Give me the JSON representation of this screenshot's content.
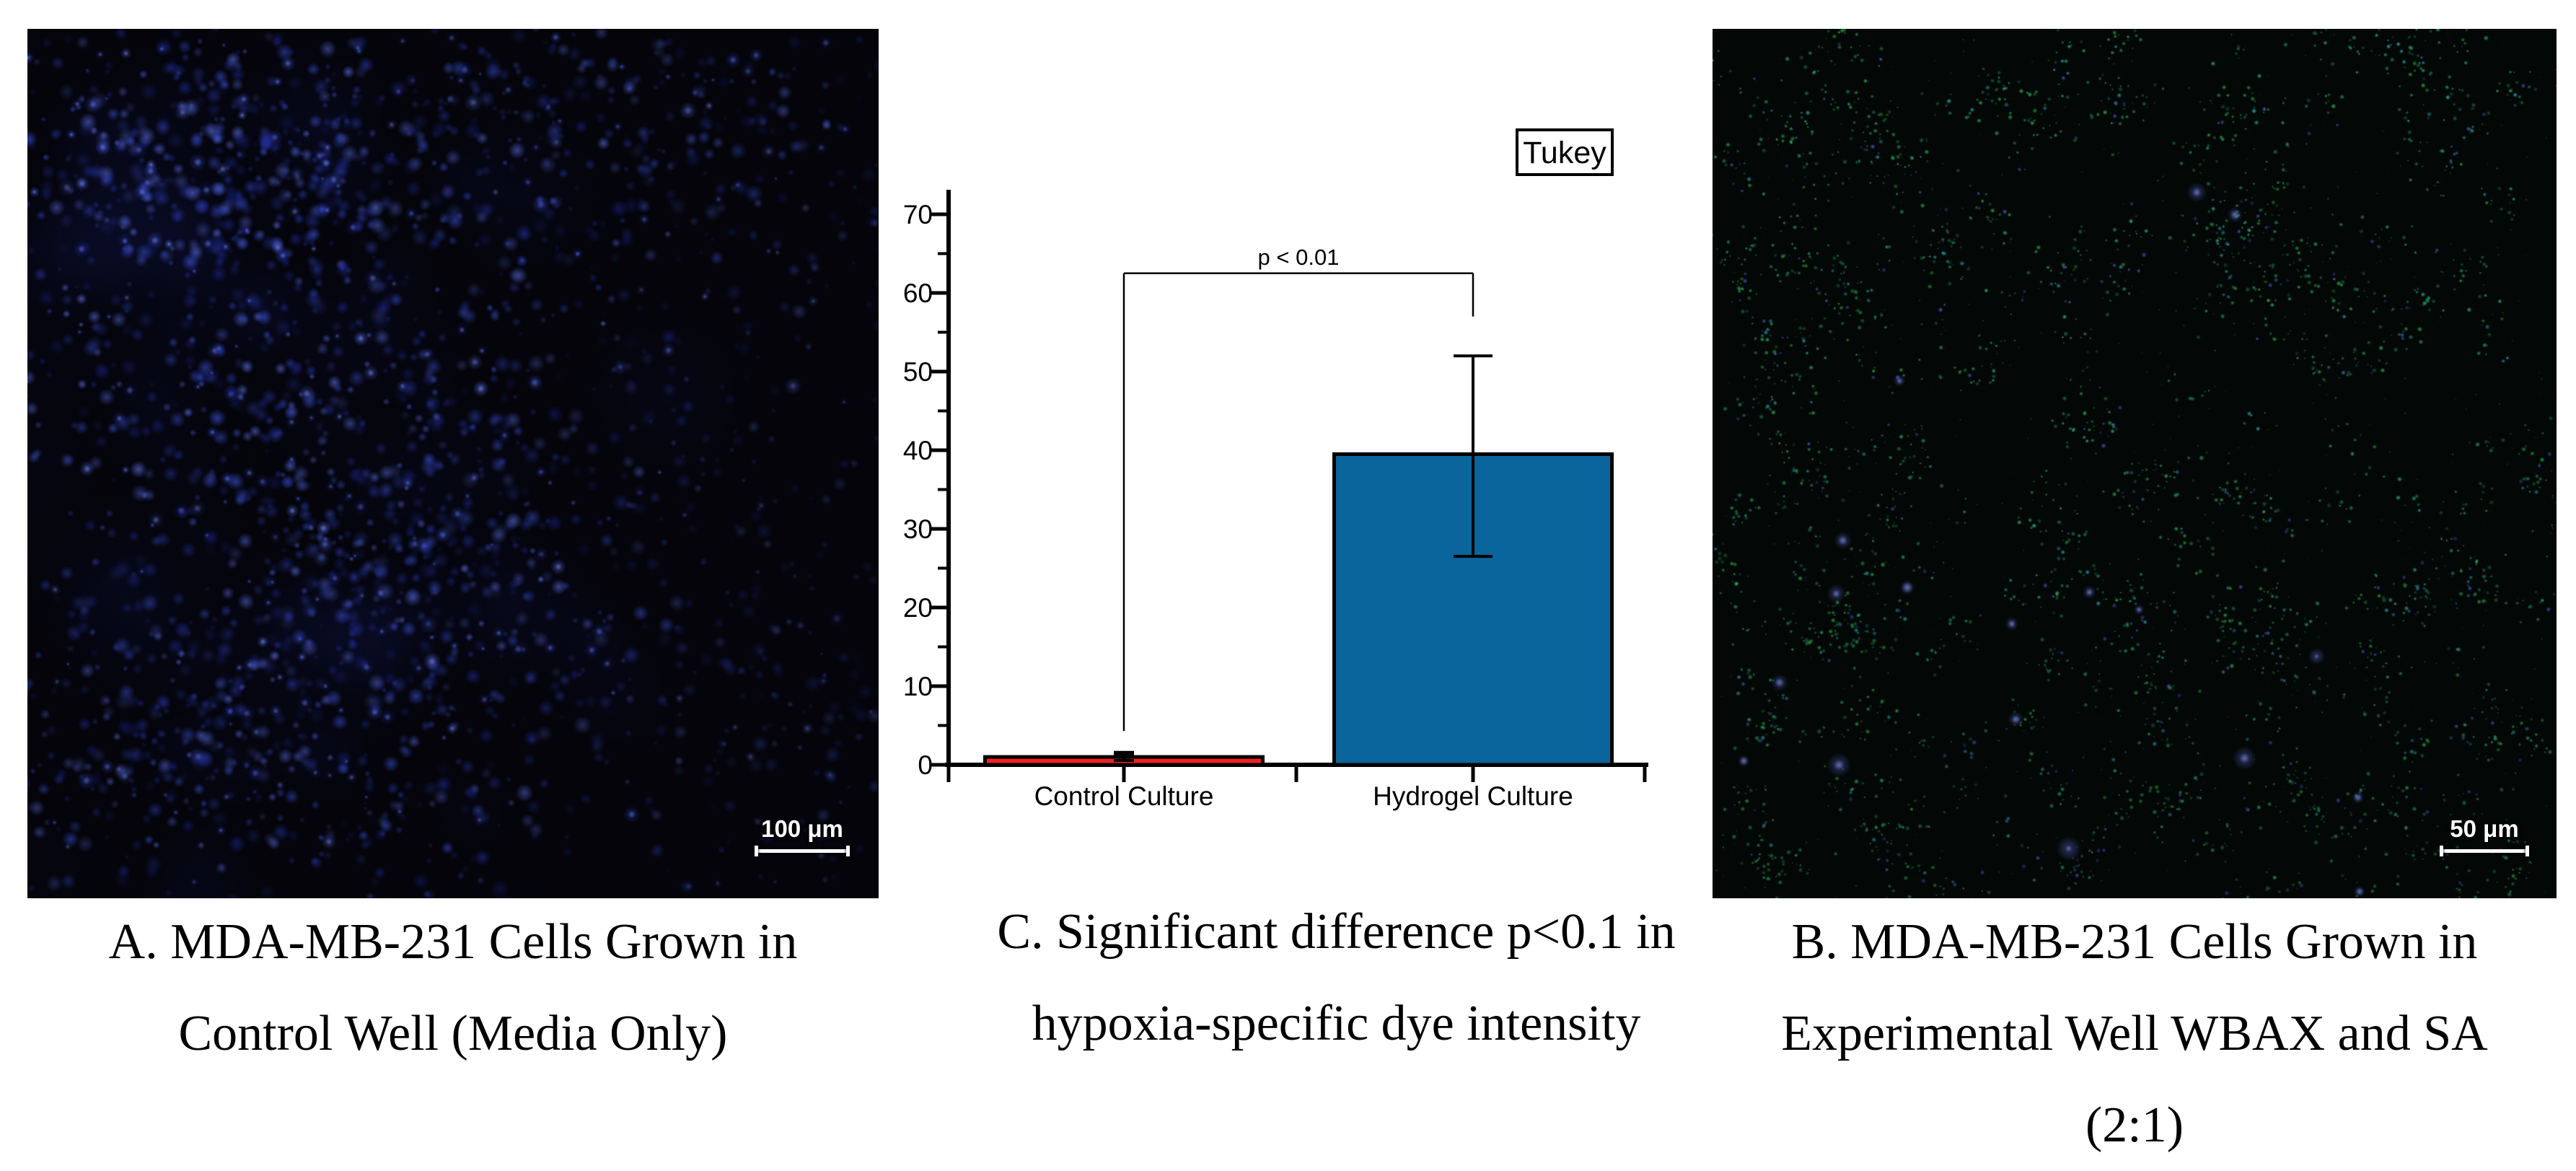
{
  "figure": {
    "background": "#ffffff",
    "panel_a": {
      "caption_lines": [
        "A. MDA-MB-231 Cells Grown in",
        "Control Well (Media Only)"
      ],
      "scale_bar_label": "100 μm",
      "image_type": "fluorescence micrograph, blue-stained nuclei on black",
      "dye_colors": {
        "nuclei_blue": "#3a52d8"
      }
    },
    "panel_b": {
      "caption_lines": [
        "B. MDA-MB-231 Cells Grown in",
        "Experimental Well WBAX and SA",
        "(2:1)"
      ],
      "scale_bar_label": "50 μm",
      "image_type": "fluorescence micrograph, dense green/cyan speckle with blue patches on black",
      "dye_colors": {
        "hypoxia_green": "#2bc963",
        "cyan": "#2fb9c9",
        "nuclei_blue": "#4f62d8"
      }
    },
    "panel_c_caption_lines": [
      "C. Significant difference p<0.1 in",
      "hypoxia-specific dye intensity"
    ]
  },
  "chart_data": {
    "type": "bar",
    "title": "",
    "legend": "Tukey",
    "legend_position": "top-right",
    "categories": [
      "Control Culture",
      "Hydrogel Culture"
    ],
    "values": [
      1.0,
      39.5
    ],
    "error_up": [
      0.45,
      12.5
    ],
    "error_down": [
      0.45,
      13.0
    ],
    "bar_colors": [
      "#ee2222",
      "#0a659c"
    ],
    "bar_edge_color": "#000000",
    "xlabel": "",
    "ylabel": "",
    "ylim": [
      0,
      70
    ],
    "ytick_step": 10,
    "yminor_step": 5,
    "grid": "off",
    "annotation": {
      "text": "p < 0.01",
      "bracket_y": 62.5,
      "left_drop_to": 4.3,
      "right_drop_to": 57
    }
  }
}
